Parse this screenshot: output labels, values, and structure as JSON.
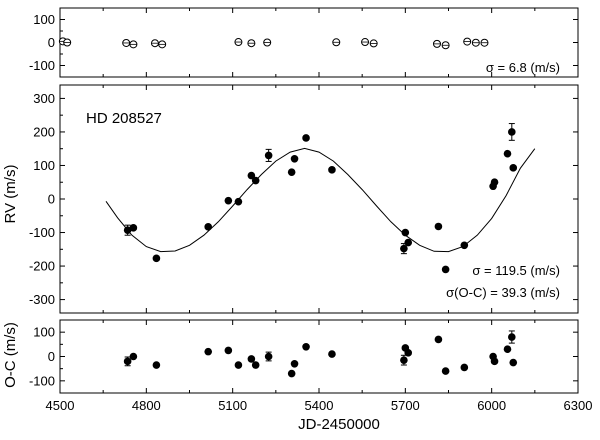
{
  "chart_data": [
    {
      "type": "scatter",
      "panel": "top",
      "note": "",
      "xlim": [
        4500,
        6300
      ],
      "ylim": [
        -150,
        150
      ],
      "yticks": [
        -100,
        0,
        100
      ],
      "annotation": "σ = 6.8 (m/s)",
      "series": [
        {
          "marker": "open-circle",
          "points": [
            [
              4510,
              5
            ],
            [
              4525,
              0
            ],
            [
              4730,
              -2
            ],
            [
              4755,
              -8
            ],
            [
              4830,
              -3
            ],
            [
              4855,
              -8
            ],
            [
              5120,
              2
            ],
            [
              5165,
              -3
            ],
            [
              5220,
              0
            ],
            [
              5460,
              1
            ],
            [
              5560,
              2
            ],
            [
              5590,
              -4
            ],
            [
              5810,
              -6
            ],
            [
              5840,
              -12
            ],
            [
              5915,
              4
            ],
            [
              5945,
              -1
            ],
            [
              5975,
              -1
            ]
          ]
        }
      ]
    },
    {
      "type": "scatter",
      "panel": "middle",
      "title": "HD 208527",
      "ylabel": "RV (m/s)",
      "xlim": [
        4500,
        6300
      ],
      "ylim": [
        -340,
        340
      ],
      "yticks": [
        -300,
        -200,
        -100,
        0,
        100,
        200,
        300
      ],
      "annotations": [
        "σ = 119.5 (m/s)",
        "σ(O-C) = 39.3 (m/s)"
      ],
      "series": [
        {
          "marker": "filled-circle",
          "points": [
            [
              4735,
              -93,
              15
            ],
            [
              4755,
              -86,
              0
            ],
            [
              4835,
              -177,
              0
            ],
            [
              5015,
              -83,
              0
            ],
            [
              5085,
              -5,
              0
            ],
            [
              5120,
              -8,
              0
            ],
            [
              5165,
              70,
              0
            ],
            [
              5180,
              55,
              0
            ],
            [
              5225,
              130,
              18
            ],
            [
              5305,
              80,
              0
            ],
            [
              5315,
              120,
              0
            ],
            [
              5355,
              182,
              0
            ],
            [
              5445,
              87,
              0
            ],
            [
              5695,
              -148,
              15
            ],
            [
              5700,
              -100,
              0
            ],
            [
              5710,
              -130,
              0
            ],
            [
              5815,
              -82,
              0
            ],
            [
              5840,
              -210,
              0
            ],
            [
              5905,
              -138,
              0
            ],
            [
              6005,
              38,
              0
            ],
            [
              6010,
              50,
              0
            ],
            [
              6055,
              135,
              0
            ],
            [
              6070,
              200,
              25
            ],
            [
              6075,
              93,
              0
            ]
          ]
        }
      ],
      "fit_curve": {
        "type": "sinusoid",
        "x_range": [
          4660,
          6150
        ],
        "samples": [
          [
            4660,
            -7
          ],
          [
            4700,
            -56
          ],
          [
            4750,
            -108
          ],
          [
            4800,
            -142
          ],
          [
            4850,
            -157
          ],
          [
            4900,
            -155
          ],
          [
            4950,
            -138
          ],
          [
            5000,
            -108
          ],
          [
            5050,
            -68
          ],
          [
            5100,
            -21
          ],
          [
            5150,
            28
          ],
          [
            5200,
            73
          ],
          [
            5250,
            113
          ],
          [
            5300,
            140
          ],
          [
            5350,
            151
          ],
          [
            5400,
            140
          ],
          [
            5450,
            113
          ],
          [
            5500,
            73
          ],
          [
            5550,
            28
          ],
          [
            5600,
            -21
          ],
          [
            5650,
            -68
          ],
          [
            5700,
            -108
          ],
          [
            5750,
            -138
          ],
          [
            5800,
            -156
          ],
          [
            5850,
            -157
          ],
          [
            5900,
            -142
          ],
          [
            5950,
            -108
          ],
          [
            6000,
            -58
          ],
          [
            6050,
            10
          ],
          [
            6100,
            92
          ],
          [
            6150,
            150
          ]
        ]
      }
    },
    {
      "type": "scatter",
      "panel": "bottom",
      "ylabel": "O-C (m/s)",
      "xlabel": "JD-2450000",
      "xlim": [
        4500,
        6300
      ],
      "ylim": [
        -150,
        150
      ],
      "yticks": [
        -100,
        0,
        100
      ],
      "xticks": [
        4500,
        4800,
        5100,
        5400,
        5700,
        6000,
        6300
      ],
      "series": [
        {
          "marker": "filled-circle",
          "points": [
            [
              4735,
              -20,
              18
            ],
            [
              4755,
              0,
              0
            ],
            [
              4835,
              -35,
              0
            ],
            [
              5015,
              20,
              0
            ],
            [
              5085,
              25,
              0
            ],
            [
              5120,
              -35,
              0
            ],
            [
              5165,
              -10,
              0
            ],
            [
              5180,
              -35,
              0
            ],
            [
              5225,
              0,
              18
            ],
            [
              5305,
              -70,
              0
            ],
            [
              5315,
              -30,
              0
            ],
            [
              5355,
              40,
              0
            ],
            [
              5445,
              10,
              0
            ],
            [
              5695,
              -15,
              20
            ],
            [
              5700,
              35,
              0
            ],
            [
              5710,
              15,
              0
            ],
            [
              5815,
              70,
              0
            ],
            [
              5840,
              -60,
              0
            ],
            [
              5905,
              -45,
              0
            ],
            [
              6005,
              0,
              0
            ],
            [
              6010,
              -20,
              0
            ],
            [
              6055,
              30,
              0
            ],
            [
              6070,
              80,
              25
            ],
            [
              6075,
              -25,
              0
            ]
          ]
        }
      ]
    }
  ]
}
